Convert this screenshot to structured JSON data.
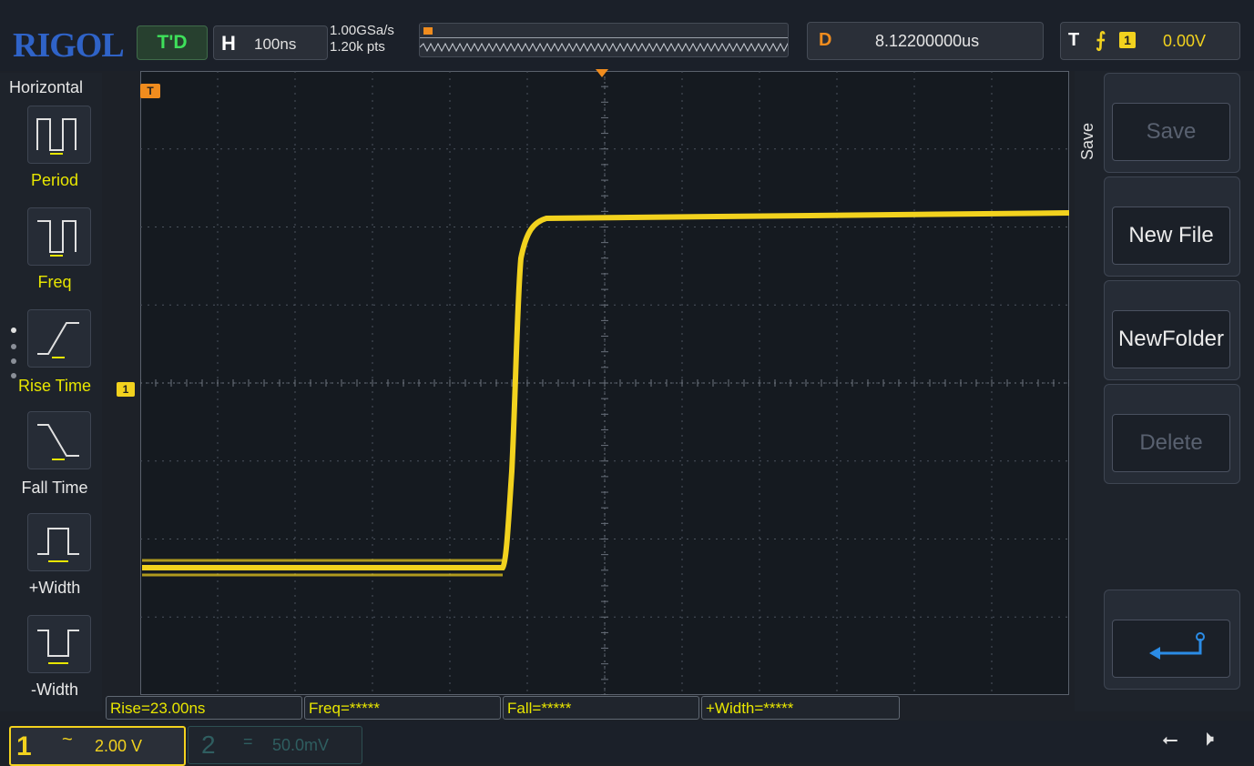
{
  "header": {
    "logo": "RIGOL",
    "run_status": "T'D",
    "horizontal": {
      "label": "H",
      "timebase": "100ns"
    },
    "sampling": {
      "rate": "1.00GSa/s",
      "points": "1.20k pts"
    },
    "delay": {
      "label": "D",
      "value": "8.12200000us"
    },
    "trigger": {
      "label": "T",
      "edge": "rising",
      "edge_glyph": "⨍",
      "source": "1",
      "level": "0.00V"
    }
  },
  "left_menu": {
    "title": "Horizontal",
    "items": [
      {
        "label": "Period",
        "icon": "period-icon"
      },
      {
        "label": "Freq",
        "icon": "freq-icon"
      },
      {
        "label": "Rise Time",
        "icon": "rise-time-icon"
      },
      {
        "label": "Fall Time",
        "icon": "fall-time-icon"
      },
      {
        "label": "+Width",
        "icon": "positive-width-icon"
      },
      {
        "label": "-Width",
        "icon": "negative-width-icon"
      }
    ]
  },
  "right_menu": {
    "title": "Save",
    "buttons": [
      {
        "label": "Save",
        "enabled": false
      },
      {
        "label": "New File",
        "enabled": true
      },
      {
        "label": "NewFolder",
        "enabled": true
      },
      {
        "label": "Delete",
        "enabled": false
      }
    ],
    "back_icon": "return-icon"
  },
  "markers": {
    "trigger_top": "T",
    "trigger_right": "T",
    "channel1": "1"
  },
  "measurements": [
    {
      "label": "Rise=23.00ns"
    },
    {
      "label": "Freq=*****"
    },
    {
      "label": "Fall=*****"
    },
    {
      "label": "+Width=*****"
    }
  ],
  "channels": [
    {
      "number": "1",
      "coupling_glyph": "~",
      "scale": "2.00 V",
      "active": true
    },
    {
      "number": "2",
      "coupling_glyph": "=",
      "scale": "50.0mV",
      "active": false
    }
  ],
  "status_icons": {
    "usb": "usb-icon",
    "speaker": "speaker-icon"
  },
  "colors": {
    "channel1": "#f2d21e",
    "trigger": "#f08c1e",
    "run_status": "#3ee05a",
    "logo": "#2f63c8"
  }
}
